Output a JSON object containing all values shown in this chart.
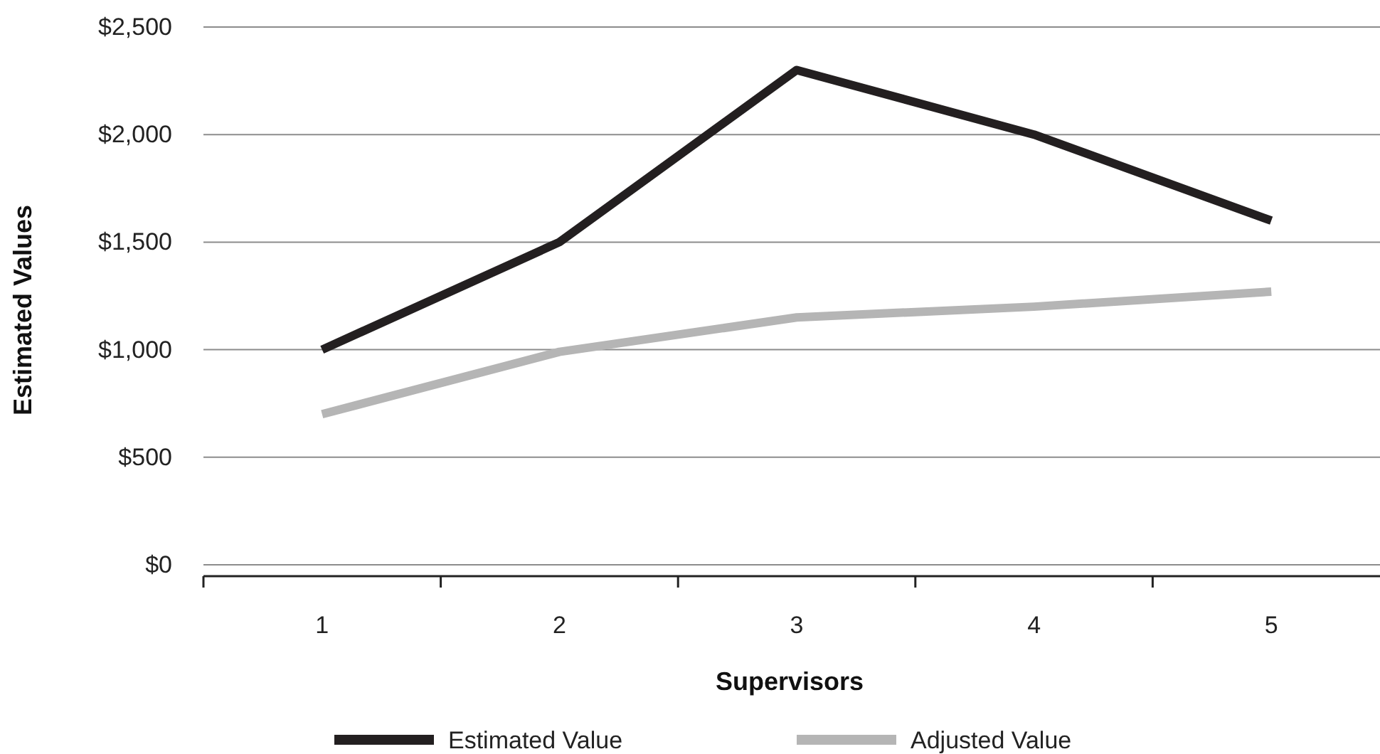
{
  "chart_data": {
    "type": "line",
    "xlabel": "Supervisors",
    "ylabel": "Estimated Values",
    "categories": [
      "1",
      "2",
      "3",
      "4",
      "5"
    ],
    "series": [
      {
        "name": "Estimated Value",
        "color": "#231f20",
        "values": [
          1000,
          1500,
          2300,
          2000,
          1600
        ]
      },
      {
        "name": "Adjusted Value",
        "color": "#b5b5b5",
        "values": [
          700,
          990,
          1150,
          1200,
          1270
        ]
      }
    ],
    "ylim": [
      0,
      2500
    ],
    "yticks": [
      {
        "value": 0,
        "label": "$0"
      },
      {
        "value": 500,
        "label": "$500"
      },
      {
        "value": 1000,
        "label": "$1,000"
      },
      {
        "value": 1500,
        "label": "$1,500"
      },
      {
        "value": 2000,
        "label": "$2,000"
      },
      {
        "value": 2500,
        "label": "$2,500"
      }
    ],
    "grid": "y",
    "legend": "bottom",
    "marker": "none",
    "line_style": "solid"
  }
}
